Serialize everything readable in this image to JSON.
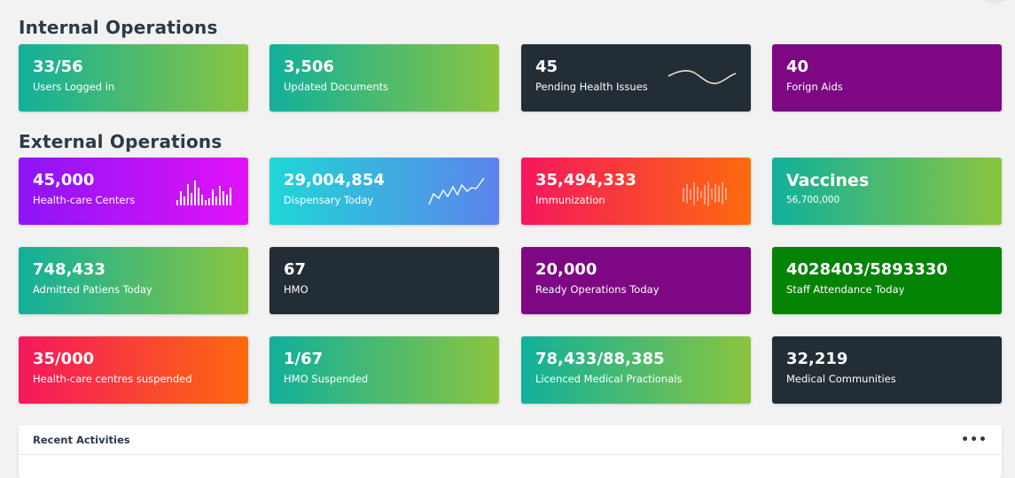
{
  "sections": {
    "internal_title": "Internal Operations",
    "external_title": "External Operations"
  },
  "cards": {
    "users_logged_in": {
      "value": "33/56",
      "label": "Users Logged in"
    },
    "updated_documents": {
      "value": "3,506",
      "label": "Updated Documents"
    },
    "pending_health_issues": {
      "value": "45",
      "label": "Pending Health Issues"
    },
    "forign_aids": {
      "value": "40",
      "label": "Forign Aids"
    },
    "health_care_centers": {
      "value": "45,000",
      "label": "Health-care Centers"
    },
    "dispensary_today": {
      "value": "29,004,854",
      "label": "Dispensary Today"
    },
    "immunization": {
      "value": "35,494,333",
      "label": "Immunization"
    },
    "vaccines": {
      "value": "Vaccines",
      "label": "56,700,000"
    },
    "admitted_patients": {
      "value": "748,433",
      "label": "Admitted Patiens Today"
    },
    "hmo": {
      "value": "67",
      "label": "HMO"
    },
    "ready_operations": {
      "value": "20,000",
      "label": "Ready Operations Today"
    },
    "staff_attendance": {
      "value": "4028403/5893330",
      "label": "Staff Attendance Today"
    },
    "centres_suspended": {
      "value": "35/000",
      "label": "Health-care centres suspended"
    },
    "hmo_suspended": {
      "value": "1/67",
      "label": "HMO Suspended"
    },
    "licenced_practionals": {
      "value": "78,433/88,385",
      "label": "Licenced Medical Practionals"
    },
    "medical_communities": {
      "value": "32,219",
      "label": "Medical Communities"
    }
  },
  "recent_activities": {
    "title": "Recent Activities",
    "menu_icon": "more-horizontal-icon",
    "menu_glyph": "•••"
  },
  "colors": {
    "teal_green": [
      "#11b09b",
      "#8ac53f"
    ],
    "dark": "#232d35",
    "purple": "#7e0783",
    "violet": [
      "#8c15f6",
      "#e212f8"
    ],
    "cyan_blue": [
      "#1fd7d6",
      "#5d83ec"
    ],
    "red_orange": [
      "#f5175d",
      "#fd6a0e"
    ],
    "green": "#058305"
  }
}
